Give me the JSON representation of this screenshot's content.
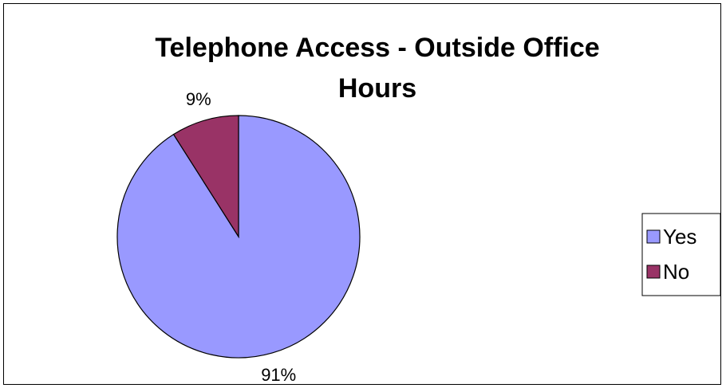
{
  "chart_data": {
    "type": "pie",
    "title": "Telephone Access - Outside Office Hours",
    "title_lines": [
      "Telephone Access - Outside Office",
      "Hours"
    ],
    "categories": [
      "Yes",
      "No"
    ],
    "values": [
      91,
      9
    ],
    "labels": [
      "91%",
      "9%"
    ],
    "colors": [
      "#9999ff",
      "#993366"
    ],
    "legend_position": "right"
  }
}
